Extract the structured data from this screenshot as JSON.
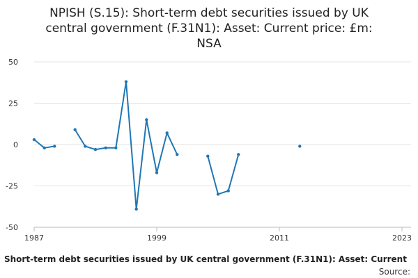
{
  "chart_data": {
    "type": "line",
    "title_lines": [
      "NPISH (S.15): Short-term debt securities issued by UK",
      "central government (F.31N1): Asset: Current price: £m:",
      "NSA"
    ],
    "caption": "Short-term debt securities issued by UK central government (F.31N1): Asset: Current",
    "source": "Source:",
    "xlim": [
      1987,
      2023
    ],
    "ylim": [
      -50,
      50
    ],
    "x_ticks": [
      "1987",
      "1999",
      "2011",
      "2023"
    ],
    "y_ticks": [
      "50",
      "25",
      "0",
      "-25",
      "-50"
    ],
    "y_tick_values": [
      50,
      25,
      0,
      -25,
      -50
    ],
    "x_tick_values": [
      1987,
      1999,
      2011,
      2023
    ],
    "grid": true,
    "color": "#1f77b4",
    "series": [
      {
        "values": [
          [
            1987,
            3
          ],
          [
            1988,
            -2
          ],
          [
            1989,
            -1
          ],
          [
            1990,
            null
          ],
          [
            1991,
            9
          ],
          [
            1992,
            -1
          ],
          [
            1993,
            -3
          ],
          [
            1994,
            -2
          ],
          [
            1995,
            -2
          ],
          [
            1996,
            38
          ],
          [
            1997,
            -39
          ],
          [
            1998,
            15
          ],
          [
            1999,
            -17
          ],
          [
            2000,
            7
          ],
          [
            2001,
            -6
          ],
          [
            2002,
            null
          ],
          [
            2003,
            null
          ],
          [
            2004,
            -7
          ],
          [
            2005,
            -30
          ],
          [
            2006,
            -28
          ],
          [
            2007,
            -6
          ],
          [
            2008,
            null
          ],
          [
            2009,
            null
          ],
          [
            2010,
            null
          ],
          [
            2011,
            null
          ],
          [
            2012,
            null
          ],
          [
            2013,
            -1
          ]
        ]
      }
    ]
  }
}
